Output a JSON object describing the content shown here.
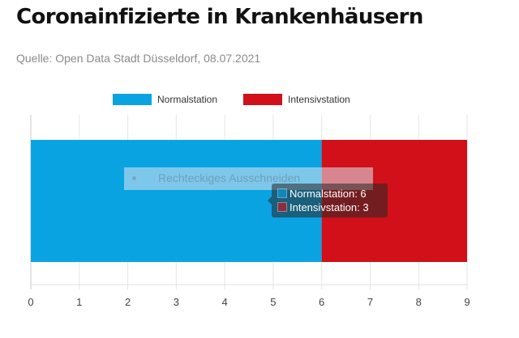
{
  "page": {
    "title": "Coronainfizierte in Krankenhäusern",
    "subtitle": "Quelle: Open Data Stadt Düsseldorf, 08.07.2021"
  },
  "chart_data": {
    "type": "bar",
    "orientation": "horizontal",
    "stacked": true,
    "categories": [
      ""
    ],
    "series": [
      {
        "name": "Normalstation",
        "values": [
          6
        ],
        "color": "#0aa3e2"
      },
      {
        "name": "Intensivstation",
        "values": [
          3
        ],
        "color": "#d1101a"
      }
    ],
    "xlim": [
      0,
      9
    ],
    "x_ticks": [
      "0",
      "1",
      "2",
      "3",
      "4",
      "5",
      "6",
      "7",
      "8",
      "9"
    ],
    "grid": true,
    "legend_position": "top"
  },
  "overlay": {
    "label": "Rechteckiges Ausschneiden"
  },
  "tooltip": {
    "rows": [
      "Normalstation: 6",
      "Intensivstation: 3"
    ],
    "colors": [
      "#0aa3e2",
      "#d1101a"
    ]
  }
}
